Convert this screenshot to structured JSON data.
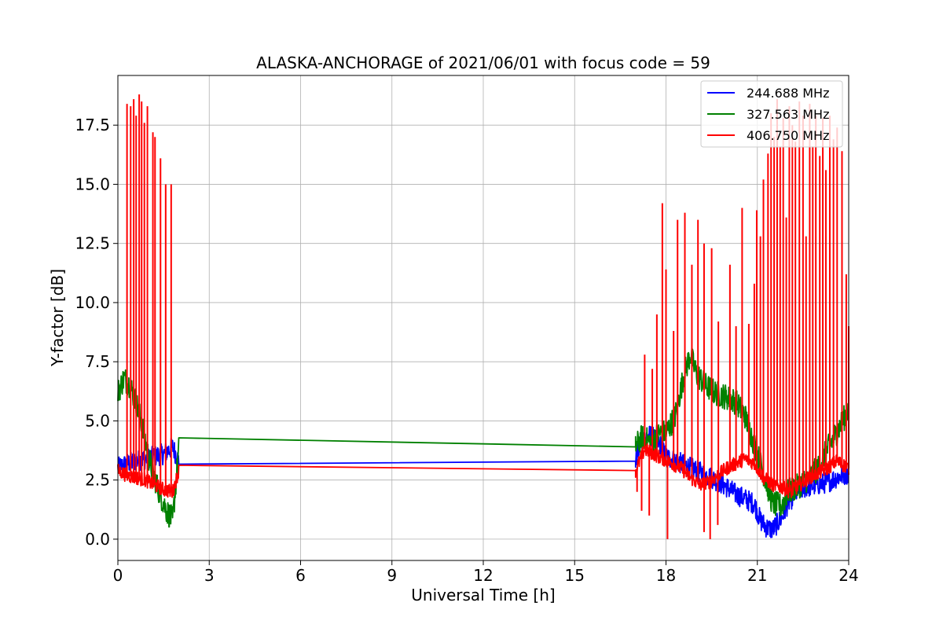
{
  "chart_data": {
    "type": "line",
    "title": "ALASKA-ANCHORAGE of 2021/06/01 with focus code = 59",
    "xlabel": "Universal Time [h]",
    "ylabel": "Y-factor [dB]",
    "xlim": [
      0,
      24
    ],
    "ylim": [
      -0.9,
      19.6
    ],
    "xticks": [
      0,
      3,
      6,
      9,
      12,
      15,
      18,
      21,
      24
    ],
    "yticks": [
      0.0,
      2.5,
      5.0,
      7.5,
      10.0,
      12.5,
      15.0,
      17.5
    ],
    "xtick_labels": [
      "0",
      "3",
      "6",
      "9",
      "12",
      "15",
      "18",
      "21",
      "24"
    ],
    "ytick_labels": [
      "0.0",
      "2.5",
      "5.0",
      "7.5",
      "10.0",
      "12.5",
      "15.0",
      "17.5"
    ],
    "grid": true,
    "legend_position": "top-right",
    "series": [
      {
        "name": "244.688 MHz",
        "color": "#0000ff",
        "x": [
          0,
          0.3,
          0.6,
          0.9,
          1.2,
          1.5,
          1.8,
          2.0,
          17.0,
          17.2,
          17.5,
          17.8,
          18.0,
          18.5,
          19.0,
          19.5,
          20.0,
          20.3,
          20.6,
          20.9,
          21.1,
          21.3,
          21.5,
          21.8,
          22.0,
          22.3,
          22.6,
          23.0,
          23.3,
          23.6,
          24.0
        ],
        "y": [
          3.0,
          3.2,
          3.3,
          3.4,
          3.5,
          3.6,
          3.9,
          3.3,
          3.3,
          4.2,
          4.4,
          4.0,
          3.5,
          3.2,
          2.9,
          2.6,
          2.2,
          1.9,
          1.7,
          1.5,
          0.8,
          0.5,
          0.4,
          0.9,
          1.5,
          2.0,
          2.2,
          2.3,
          2.4,
          2.6,
          2.8
        ]
      },
      {
        "name": "327.563 MHz",
        "color": "#008000",
        "x": [
          0,
          0.2,
          0.4,
          0.6,
          0.8,
          1.0,
          1.3,
          1.6,
          1.8,
          2.0,
          17.0,
          17.2,
          17.5,
          17.8,
          18.0,
          18.3,
          18.6,
          18.8,
          19.0,
          19.3,
          19.6,
          20.0,
          20.3,
          20.6,
          20.9,
          21.2,
          21.5,
          21.8,
          22.0,
          22.3,
          22.6,
          23.0,
          23.3,
          23.6,
          24.0
        ],
        "y": [
          6.2,
          6.8,
          6.5,
          5.8,
          4.8,
          3.5,
          2.2,
          1.2,
          0.8,
          3.8,
          3.9,
          4.3,
          4.1,
          4.5,
          4.5,
          5.2,
          7.0,
          7.8,
          7.0,
          6.5,
          6.2,
          6.0,
          5.8,
          5.2,
          4.0,
          2.8,
          1.5,
          1.4,
          2.0,
          2.2,
          2.5,
          3.0,
          3.8,
          4.5,
          5.5
        ]
      },
      {
        "name": "406.750 MHz",
        "color": "#ff0000",
        "x": [
          0,
          0.3,
          0.6,
          0.9,
          1.2,
          1.5,
          1.8,
          2.0,
          17.0,
          17.3,
          17.6,
          17.9,
          18.2,
          18.5,
          18.8,
          19.1,
          19.4,
          19.7,
          20.0,
          20.3,
          20.6,
          20.9,
          21.2,
          21.5,
          21.8,
          22.1,
          22.4,
          22.7,
          23.0,
          23.3,
          23.6,
          24.0
        ],
        "y": [
          2.9,
          2.7,
          2.6,
          2.5,
          2.3,
          2.1,
          2.0,
          2.9,
          2.9,
          3.8,
          3.6,
          3.4,
          3.2,
          3.0,
          2.6,
          2.3,
          2.4,
          2.7,
          3.0,
          3.2,
          3.4,
          3.2,
          2.6,
          2.3,
          2.2,
          2.0,
          2.3,
          2.6,
          2.8,
          3.0,
          3.3,
          3.0
        ],
        "spikes": [
          {
            "x": 0.3,
            "y": 18.4
          },
          {
            "x": 0.42,
            "y": 18.3
          },
          {
            "x": 0.52,
            "y": 18.6
          },
          {
            "x": 0.6,
            "y": 17.9
          },
          {
            "x": 0.7,
            "y": 18.8
          },
          {
            "x": 0.78,
            "y": 18.5
          },
          {
            "x": 0.87,
            "y": 17.6
          },
          {
            "x": 0.97,
            "y": 18.3
          },
          {
            "x": 1.15,
            "y": 17.2
          },
          {
            "x": 1.22,
            "y": 17.0
          },
          {
            "x": 1.4,
            "y": 16.1
          },
          {
            "x": 1.57,
            "y": 15.0
          },
          {
            "x": 1.75,
            "y": 15.0
          },
          {
            "x": 17.05,
            "y": 2.0
          },
          {
            "x": 17.3,
            "y": 7.8
          },
          {
            "x": 17.55,
            "y": 7.2
          },
          {
            "x": 17.7,
            "y": 9.5
          },
          {
            "x": 17.88,
            "y": 14.2
          },
          {
            "x": 18.0,
            "y": 11.4
          },
          {
            "x": 18.25,
            "y": 8.8
          },
          {
            "x": 18.38,
            "y": 13.5
          },
          {
            "x": 18.62,
            "y": 13.8
          },
          {
            "x": 18.85,
            "y": 11.6
          },
          {
            "x": 19.05,
            "y": 13.5
          },
          {
            "x": 19.25,
            "y": 12.5
          },
          {
            "x": 19.5,
            "y": 12.3
          },
          {
            "x": 19.72,
            "y": 9.2
          },
          {
            "x": 20.1,
            "y": 11.6
          },
          {
            "x": 20.3,
            "y": 9.0
          },
          {
            "x": 20.5,
            "y": 14.0
          },
          {
            "x": 20.72,
            "y": 9.1
          },
          {
            "x": 20.9,
            "y": 10.8
          },
          {
            "x": 20.98,
            "y": 13.9
          },
          {
            "x": 21.1,
            "y": 12.8
          },
          {
            "x": 21.2,
            "y": 15.2
          },
          {
            "x": 21.35,
            "y": 16.3
          },
          {
            "x": 21.45,
            "y": 18.0
          },
          {
            "x": 21.55,
            "y": 17.0
          },
          {
            "x": 21.65,
            "y": 18.6
          },
          {
            "x": 21.75,
            "y": 16.6
          },
          {
            "x": 21.85,
            "y": 17.8
          },
          {
            "x": 21.95,
            "y": 13.6
          },
          {
            "x": 22.05,
            "y": 18.3
          },
          {
            "x": 22.15,
            "y": 17.5
          },
          {
            "x": 22.25,
            "y": 16.8
          },
          {
            "x": 22.38,
            "y": 18.5
          },
          {
            "x": 22.5,
            "y": 17.9
          },
          {
            "x": 22.6,
            "y": 12.8
          },
          {
            "x": 22.72,
            "y": 18.4
          },
          {
            "x": 22.82,
            "y": 16.6
          },
          {
            "x": 22.92,
            "y": 17.9
          },
          {
            "x": 23.05,
            "y": 16.2
          },
          {
            "x": 23.15,
            "y": 17.8
          },
          {
            "x": 23.25,
            "y": 15.6
          },
          {
            "x": 23.38,
            "y": 17.9
          },
          {
            "x": 23.5,
            "y": 16.9
          },
          {
            "x": 23.62,
            "y": 17.4
          },
          {
            "x": 23.78,
            "y": 16.4
          },
          {
            "x": 23.92,
            "y": 11.2
          },
          {
            "x": 24.0,
            "y": 9.0
          }
        ],
        "dips": [
          {
            "x": 17.2,
            "y": 1.2
          },
          {
            "x": 17.45,
            "y": 1.0
          },
          {
            "x": 18.05,
            "y": 0.0
          },
          {
            "x": 19.25,
            "y": 0.3
          },
          {
            "x": 19.45,
            "y": 0.0
          },
          {
            "x": 19.7,
            "y": 0.6
          }
        ]
      }
    ]
  }
}
